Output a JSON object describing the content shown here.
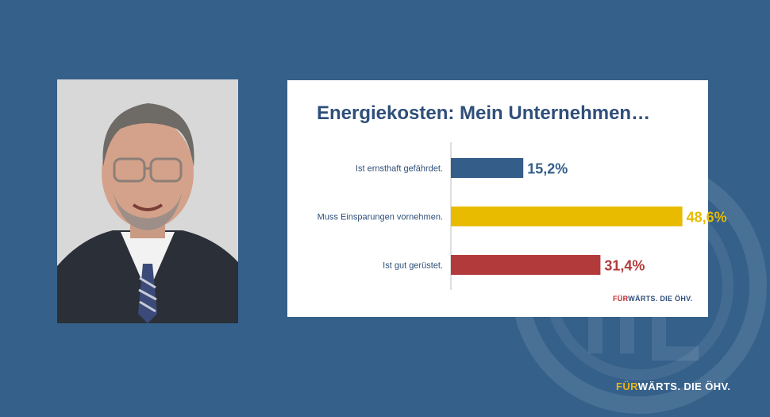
{
  "chart_data": {
    "type": "bar",
    "orientation": "horizontal",
    "title": "Energiekosten: Mein Unternehmen…",
    "categories": [
      "Ist ernsthaft gefährdet.",
      "Muss Einsparungen vornehmen.",
      "Ist gut gerüstet."
    ],
    "values": [
      15.2,
      48.6,
      31.4
    ],
    "value_labels": [
      "15,2%",
      "48,6%",
      "31,4%"
    ],
    "bar_colors": [
      "#345d89",
      "#e8bb00",
      "#b33a3a"
    ],
    "xlim": [
      0,
      50
    ],
    "grid": false
  },
  "brand": {
    "card_accent": "FÜR",
    "card_rest": "WÄRTS. DIE ÖHV.",
    "slide_accent": "FÜR",
    "slide_rest": "WÄRTS. DIE ÖHV."
  },
  "colors": {
    "background": "#35608a",
    "title": "#2f4f7a",
    "brand_red": "#c0282d",
    "brand_gold": "#e9b318"
  },
  "icons": {
    "photo": "portrait-photo",
    "watermark": "oehv-logo-watermark"
  }
}
